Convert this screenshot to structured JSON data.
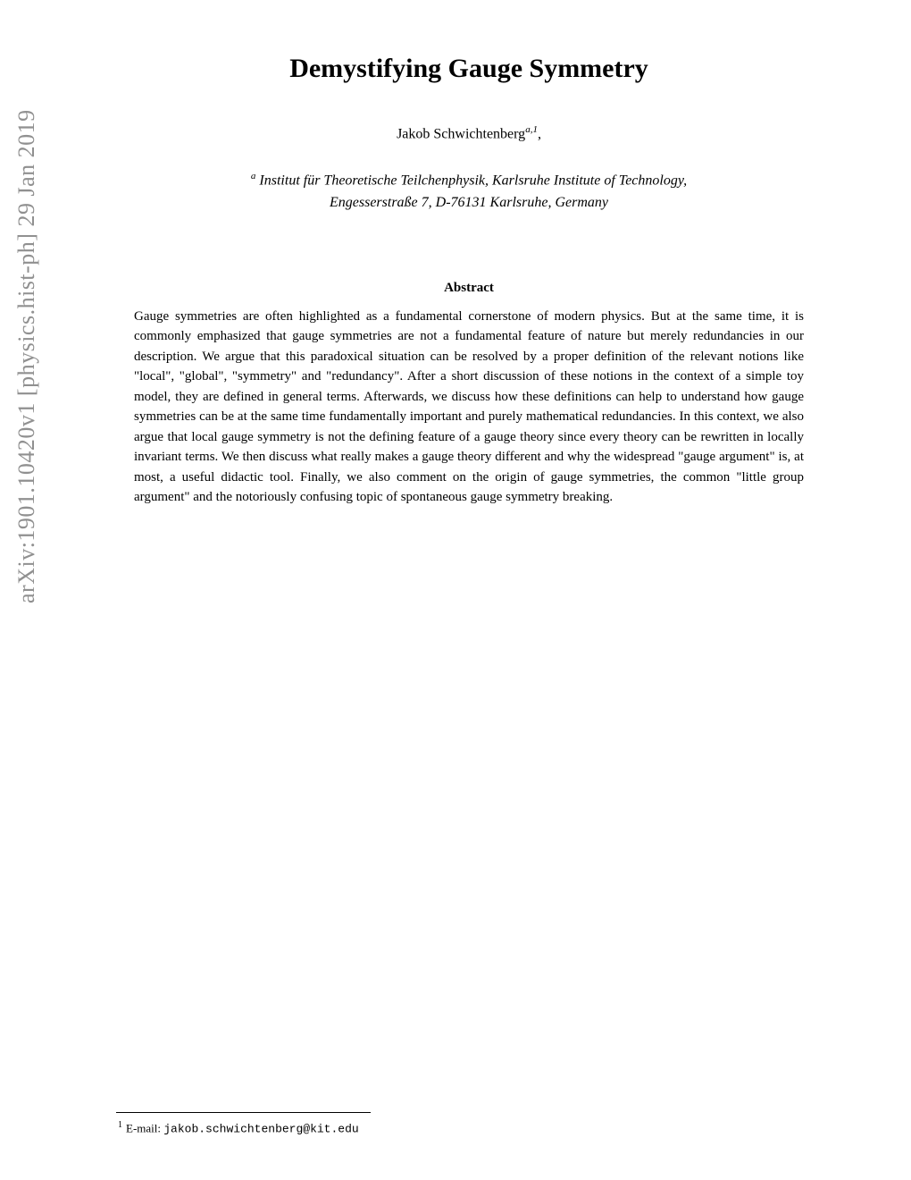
{
  "arxiv": "arXiv:1901.10420v1  [physics.hist-ph]  29 Jan 2019",
  "title": "Demystifying Gauge Symmetry",
  "author": {
    "name": "Jakob Schwichtenberg",
    "sup": "a,1",
    "trailing": ","
  },
  "affiliation_sup": "a",
  "affiliation_line1": " Institut für Theoretische Teilchenphysik, Karlsruhe Institute of Technology,",
  "affiliation_line2": "Engesserstraße 7, D-76131 Karlsruhe, Germany",
  "abstract_title": "Abstract",
  "abstract_body": "Gauge symmetries are often highlighted as a fundamental cornerstone of modern physics. But at the same time, it is commonly emphasized that gauge symmetries are not a fundamental feature of nature but merely redundancies in our description. We argue that this paradoxical situation can be resolved by a proper definition of the relevant notions like \"local\", \"global\", \"symmetry\" and \"redundancy\". After a short discussion of these notions in the context of a simple toy model, they are defined in general terms. Afterwards, we discuss how these definitions can help to understand how gauge symmetries can be at the same time fundamentally important and purely mathematical redundancies. In this context, we also argue that local gauge symmetry is not the defining feature of a gauge theory since every theory can be rewritten in locally invariant terms. We then discuss what really makes a gauge theory different and why the widespread \"gauge argument\" is, at most, a useful didactic tool. Finally, we also comment on the origin of gauge symmetries, the common \"little group argument\" and the notoriously confusing topic of spontaneous gauge symmetry breaking.",
  "footnote": {
    "marker": "1",
    "label": "E-mail: ",
    "email": "jakob.schwichtenberg@kit.edu"
  }
}
